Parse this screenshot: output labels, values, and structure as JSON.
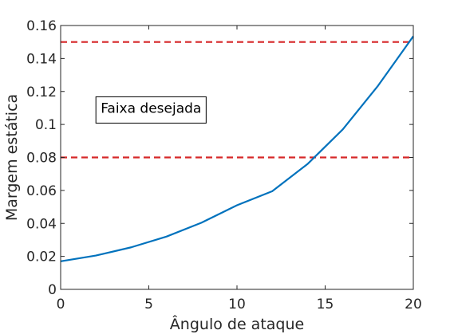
{
  "chart_data": {
    "type": "line",
    "title": "",
    "xlabel": "Ângulo de ataque",
    "ylabel": "Margem estática",
    "xlim": [
      0,
      20
    ],
    "ylim": [
      0,
      0.16
    ],
    "xticks": [
      0,
      5,
      10,
      15,
      20
    ],
    "xtick_labels": [
      "0",
      "5",
      "10",
      "15",
      "20"
    ],
    "yticks": [
      0,
      0.02,
      0.04,
      0.06,
      0.08,
      0.1,
      0.12,
      0.14,
      0.16
    ],
    "ytick_labels": [
      "0",
      "0.02",
      "0.04",
      "0.06",
      "0.08",
      "0.1",
      "0.12",
      "0.14",
      "0.16"
    ],
    "grid": false,
    "series": [
      {
        "color": "#0072BD",
        "x": [
          0,
          2,
          4,
          6,
          8,
          10,
          12,
          14,
          16,
          18,
          20
        ],
        "y": [
          0.017,
          0.0205,
          0.0255,
          0.032,
          0.0405,
          0.051,
          0.0595,
          0.076,
          0.097,
          0.1235,
          0.1535
        ]
      }
    ],
    "reference_lines": [
      {
        "y": 0.15,
        "color": "#D62728",
        "style": "dashed"
      },
      {
        "y": 0.08,
        "color": "#D62728",
        "style": "dashed"
      }
    ],
    "annotations": [
      {
        "text": "Faixa desejada",
        "x": 2.0,
        "y": 0.11
      }
    ]
  }
}
